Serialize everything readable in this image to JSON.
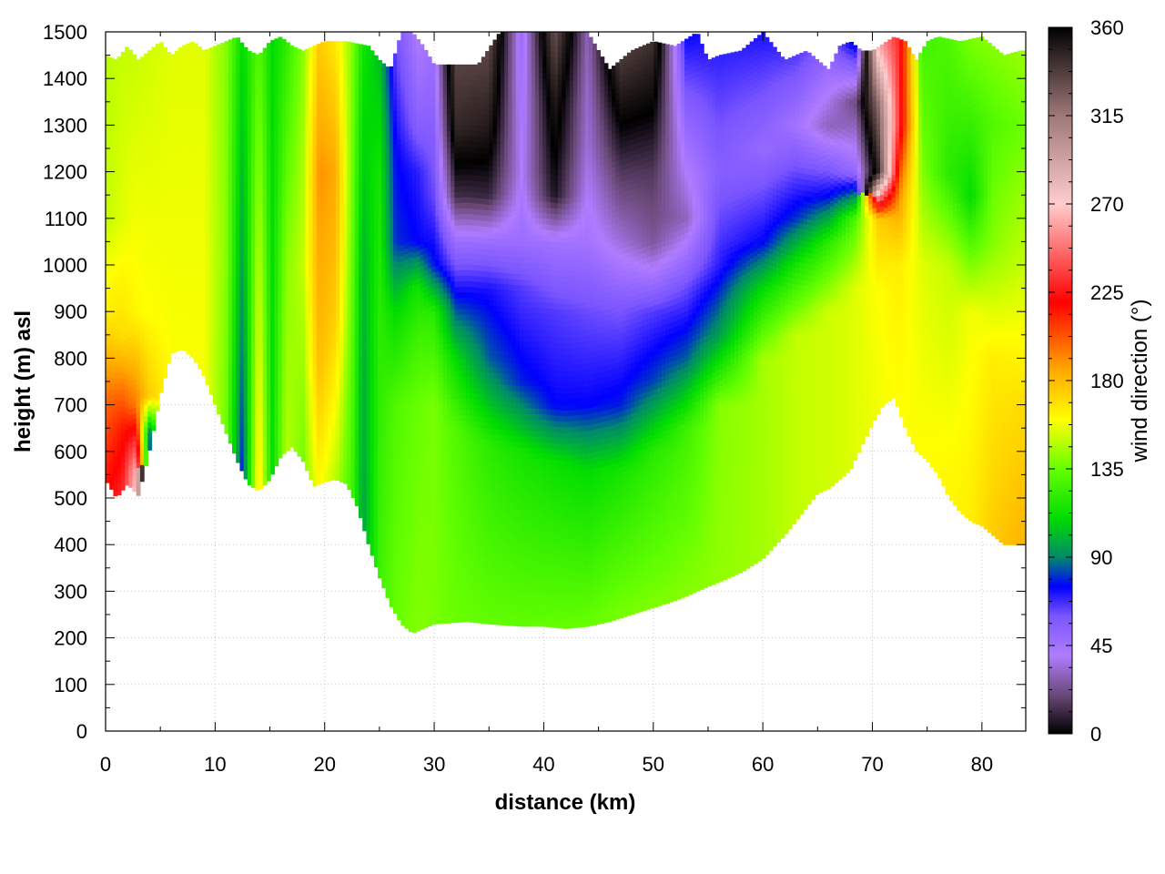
{
  "chart_data": {
    "type": "heatmap",
    "title": "",
    "xlabel": "distance (km)",
    "ylabel": "height (m) asl",
    "colorbar_label": "wind direction (°)",
    "xlim": [
      0,
      84
    ],
    "ylim": [
      0,
      1500
    ],
    "zlim": [
      0,
      360
    ],
    "x_ticks": [
      0,
      10,
      20,
      30,
      40,
      50,
      60,
      70,
      80
    ],
    "y_ticks": [
      0,
      100,
      200,
      300,
      400,
      500,
      600,
      700,
      800,
      900,
      1000,
      1100,
      1200,
      1300,
      1400,
      1500
    ],
    "colorbar_ticks": [
      0,
      45,
      90,
      135,
      180,
      225,
      270,
      315,
      360
    ],
    "grid": true,
    "colormap": [
      {
        "v": 0,
        "c": "#000000"
      },
      {
        "v": 20,
        "c": "#6b4a7a"
      },
      {
        "v": 40,
        "c": "#b07cff"
      },
      {
        "v": 60,
        "c": "#7a55ff"
      },
      {
        "v": 75,
        "c": "#0000ff"
      },
      {
        "v": 90,
        "c": "#008a6a"
      },
      {
        "v": 110,
        "c": "#00dd00"
      },
      {
        "v": 135,
        "c": "#66ff00"
      },
      {
        "v": 160,
        "c": "#ffff00"
      },
      {
        "v": 185,
        "c": "#ffaa00"
      },
      {
        "v": 220,
        "c": "#ff0000"
      },
      {
        "v": 270,
        "c": "#ffcccc"
      },
      {
        "v": 315,
        "c": "#a07878"
      },
      {
        "v": 360,
        "c": "#000000"
      }
    ],
    "terrain": {
      "x": [
        0,
        1,
        2,
        3,
        4,
        5,
        6,
        7,
        8,
        9,
        10,
        11,
        12,
        13,
        14,
        15,
        16,
        17,
        18,
        19,
        20,
        21,
        22,
        23,
        24,
        25,
        26,
        27,
        28,
        30,
        33,
        35,
        38,
        40,
        42,
        44,
        46,
        48,
        50,
        52,
        54,
        56,
        58,
        60,
        62,
        63,
        64,
        65,
        66,
        68,
        69,
        70,
        71,
        72,
        73,
        74,
        75,
        76,
        77,
        78,
        79,
        80,
        81,
        82,
        83.5
      ],
      "y": [
        540,
        500,
        530,
        505,
        600,
        720,
        810,
        820,
        800,
        760,
        700,
        640,
        580,
        530,
        515,
        540,
        590,
        610,
        580,
        525,
        535,
        540,
        530,
        480,
        400,
        330,
        270,
        230,
        210,
        230,
        235,
        230,
        225,
        225,
        220,
        225,
        235,
        250,
        265,
        280,
        300,
        320,
        340,
        370,
        420,
        450,
        480,
        510,
        520,
        560,
        610,
        660,
        700,
        715,
        650,
        600,
        580,
        550,
        500,
        470,
        450,
        440,
        420,
        400,
        400
      ]
    },
    "top": {
      "x": [
        0,
        1,
        2,
        3,
        4,
        5,
        6,
        7,
        8,
        9,
        10,
        11,
        12,
        13,
        14,
        15,
        16,
        17,
        18,
        20,
        22,
        24,
        25,
        26,
        27,
        28,
        29,
        30,
        32,
        34,
        36,
        38,
        40,
        42,
        44,
        46,
        48,
        50,
        52,
        54,
        55,
        56,
        58,
        60,
        62,
        64,
        66,
        67,
        68,
        69,
        70,
        72,
        73,
        74,
        75,
        76,
        78,
        80,
        82,
        83.5
      ],
      "y": [
        1450,
        1440,
        1470,
        1440,
        1460,
        1480,
        1450,
        1470,
        1480,
        1460,
        1470,
        1480,
        1490,
        1460,
        1450,
        1480,
        1490,
        1470,
        1460,
        1480,
        1480,
        1470,
        1440,
        1420,
        1500,
        1500,
        1470,
        1430,
        1430,
        1430,
        1500,
        1500,
        1500,
        1500,
        1500,
        1420,
        1460,
        1480,
        1470,
        1500,
        1440,
        1450,
        1460,
        1500,
        1440,
        1460,
        1420,
        1470,
        1480,
        1460,
        1460,
        1490,
        1480,
        1440,
        1480,
        1490,
        1480,
        1490,
        1450,
        1460
      ]
    },
    "profiles": [
      {
        "x": 0,
        "levels": [
          [
            400,
            230
          ],
          [
            700,
            200
          ],
          [
            900,
            165
          ],
          [
            1100,
            150
          ],
          [
            1500,
            148
          ]
        ]
      },
      {
        "x": 1.5,
        "levels": [
          [
            400,
            240
          ],
          [
            650,
            215
          ],
          [
            850,
            170
          ],
          [
            1100,
            155
          ],
          [
            1500,
            150
          ]
        ]
      },
      {
        "x": 2.8,
        "levels": [
          [
            400,
            290
          ],
          [
            560,
            265
          ],
          [
            700,
            195
          ],
          [
            900,
            162
          ],
          [
            1500,
            150
          ]
        ]
      },
      {
        "x": 4,
        "levels": [
          [
            400,
            60
          ],
          [
            640,
            90
          ],
          [
            720,
            175
          ],
          [
            900,
            160
          ],
          [
            1500,
            152
          ]
        ]
      },
      {
        "x": 6,
        "levels": [
          [
            700,
            160
          ],
          [
            1000,
            158
          ],
          [
            1500,
            155
          ]
        ]
      },
      {
        "x": 9,
        "levels": [
          [
            600,
            160
          ],
          [
            1000,
            158
          ],
          [
            1500,
            155
          ]
        ]
      },
      {
        "x": 11,
        "levels": [
          [
            500,
            135
          ],
          [
            1000,
            140
          ],
          [
            1500,
            140
          ]
        ]
      },
      {
        "x": 12.5,
        "levels": [
          [
            500,
            75
          ],
          [
            1000,
            95
          ],
          [
            1500,
            110
          ]
        ]
      },
      {
        "x": 14,
        "levels": [
          [
            500,
            170
          ],
          [
            1000,
            150
          ],
          [
            1500,
            130
          ]
        ]
      },
      {
        "x": 15.2,
        "levels": [
          [
            500,
            110
          ],
          [
            1000,
            110
          ],
          [
            1500,
            110
          ]
        ]
      },
      {
        "x": 16.5,
        "levels": [
          [
            500,
            150
          ],
          [
            1000,
            140
          ],
          [
            1500,
            120
          ]
        ]
      },
      {
        "x": 18,
        "levels": [
          [
            500,
            135
          ],
          [
            1000,
            150
          ],
          [
            1500,
            140
          ]
        ]
      },
      {
        "x": 19.5,
        "levels": [
          [
            500,
            160
          ],
          [
            800,
            180
          ],
          [
            1200,
            190
          ],
          [
            1500,
            175
          ]
        ]
      },
      {
        "x": 21,
        "levels": [
          [
            500,
            145
          ],
          [
            900,
            175
          ],
          [
            1200,
            185
          ],
          [
            1500,
            165
          ]
        ]
      },
      {
        "x": 22.5,
        "levels": [
          [
            400,
            125
          ],
          [
            1000,
            135
          ],
          [
            1500,
            140
          ]
        ]
      },
      {
        "x": 23.5,
        "levels": [
          [
            300,
            95
          ],
          [
            1000,
            100
          ],
          [
            1500,
            115
          ]
        ]
      },
      {
        "x": 25,
        "levels": [
          [
            300,
            125
          ],
          [
            900,
            120
          ],
          [
            1200,
            115
          ],
          [
            1500,
            100
          ]
        ]
      },
      {
        "x": 26.5,
        "levels": [
          [
            200,
            135
          ],
          [
            700,
            130
          ],
          [
            900,
            110
          ],
          [
            1050,
            80
          ],
          [
            1250,
            75
          ],
          [
            1500,
            60
          ]
        ]
      },
      {
        "x": 28.5,
        "levels": [
          [
            200,
            140
          ],
          [
            700,
            135
          ],
          [
            850,
            125
          ],
          [
            950,
            115
          ],
          [
            1050,
            75
          ],
          [
            1200,
            70
          ],
          [
            1300,
            55
          ],
          [
            1500,
            40
          ]
        ]
      },
      {
        "x": 30,
        "levels": [
          [
            200,
            138
          ],
          [
            700,
            138
          ],
          [
            900,
            120
          ],
          [
            1000,
            78
          ],
          [
            1150,
            62
          ],
          [
            1500,
            45
          ]
        ]
      },
      {
        "x": 32,
        "levels": [
          [
            200,
            136
          ],
          [
            650,
            130
          ],
          [
            800,
            110
          ],
          [
            950,
            72
          ],
          [
            1050,
            48
          ],
          [
            1150,
            12
          ],
          [
            1300,
            345
          ],
          [
            1500,
            330
          ]
        ]
      },
      {
        "x": 35,
        "levels": [
          [
            200,
            135
          ],
          [
            620,
            120
          ],
          [
            800,
            85
          ],
          [
            950,
            72
          ],
          [
            1050,
            48
          ],
          [
            1150,
            10
          ],
          [
            1300,
            350
          ],
          [
            1500,
            330
          ]
        ]
      },
      {
        "x": 38,
        "levels": [
          [
            200,
            135
          ],
          [
            600,
            115
          ],
          [
            750,
            78
          ],
          [
            950,
            65
          ],
          [
            1050,
            48
          ],
          [
            1200,
            40
          ],
          [
            1500,
            48
          ]
        ]
      },
      {
        "x": 41,
        "levels": [
          [
            200,
            136
          ],
          [
            580,
            112
          ],
          [
            700,
            75
          ],
          [
            900,
            65
          ],
          [
            1050,
            45
          ],
          [
            1150,
            5
          ],
          [
            1350,
            350
          ],
          [
            1500,
            330
          ]
        ]
      },
      {
        "x": 44,
        "levels": [
          [
            200,
            137
          ],
          [
            560,
            110
          ],
          [
            700,
            75
          ],
          [
            900,
            62
          ],
          [
            1050,
            45
          ],
          [
            1250,
            35
          ],
          [
            1500,
            30
          ]
        ]
      },
      {
        "x": 47,
        "levels": [
          [
            250,
            138
          ],
          [
            560,
            115
          ],
          [
            700,
            78
          ],
          [
            900,
            60
          ],
          [
            1050,
            35
          ],
          [
            1200,
            15
          ],
          [
            1500,
            330
          ]
        ]
      },
      {
        "x": 50,
        "levels": [
          [
            250,
            140
          ],
          [
            600,
            120
          ],
          [
            750,
            82
          ],
          [
            900,
            65
          ],
          [
            1050,
            25
          ],
          [
            1200,
            15
          ],
          [
            1500,
            340
          ]
        ]
      },
      {
        "x": 53,
        "levels": [
          [
            300,
            140
          ],
          [
            650,
            125
          ],
          [
            800,
            85
          ],
          [
            950,
            62
          ],
          [
            1100,
            30
          ],
          [
            1300,
            50
          ],
          [
            1500,
            75
          ]
        ]
      },
      {
        "x": 56,
        "levels": [
          [
            300,
            142
          ],
          [
            700,
            140
          ],
          [
            850,
            95
          ],
          [
            1000,
            70
          ],
          [
            1200,
            55
          ],
          [
            1500,
            72
          ]
        ]
      },
      {
        "x": 60,
        "levels": [
          [
            350,
            145
          ],
          [
            800,
            145
          ],
          [
            950,
            110
          ],
          [
            1050,
            75
          ],
          [
            1250,
            50
          ],
          [
            1500,
            72
          ]
        ]
      },
      {
        "x": 63,
        "levels": [
          [
            450,
            150
          ],
          [
            850,
            150
          ],
          [
            1000,
            115
          ],
          [
            1100,
            80
          ],
          [
            1300,
            45
          ],
          [
            1500,
            72
          ]
        ]
      },
      {
        "x": 66,
        "levels": [
          [
            500,
            152
          ],
          [
            900,
            152
          ],
          [
            1050,
            120
          ],
          [
            1150,
            75
          ],
          [
            1300,
            30
          ],
          [
            1500,
            60
          ]
        ]
      },
      {
        "x": 68.5,
        "levels": [
          [
            550,
            155
          ],
          [
            950,
            155
          ],
          [
            1100,
            130
          ],
          [
            1200,
            50
          ],
          [
            1350,
            20
          ],
          [
            1500,
            90
          ]
        ]
      },
      {
        "x": 70.5,
        "levels": [
          [
            700,
            158
          ],
          [
            950,
            160
          ],
          [
            1100,
            175
          ],
          [
            1200,
            350
          ],
          [
            1350,
            320
          ],
          [
            1500,
            250
          ]
        ]
      },
      {
        "x": 72.5,
        "levels": [
          [
            700,
            160
          ],
          [
            1000,
            165
          ],
          [
            1150,
            190
          ],
          [
            1300,
            230
          ],
          [
            1450,
            230
          ]
        ]
      },
      {
        "x": 74.5,
        "levels": [
          [
            600,
            160
          ],
          [
            1000,
            155
          ],
          [
            1200,
            140
          ],
          [
            1500,
            125
          ]
        ]
      },
      {
        "x": 77,
        "levels": [
          [
            550,
            162
          ],
          [
            1000,
            150
          ],
          [
            1200,
            120
          ],
          [
            1500,
            130
          ]
        ]
      },
      {
        "x": 79,
        "levels": [
          [
            450,
            165
          ],
          [
            900,
            158
          ],
          [
            1150,
            110
          ],
          [
            1500,
            140
          ]
        ]
      },
      {
        "x": 81,
        "levels": [
          [
            420,
            175
          ],
          [
            800,
            165
          ],
          [
            1050,
            140
          ],
          [
            1300,
            130
          ],
          [
            1500,
            142
          ]
        ]
      },
      {
        "x": 83.5,
        "levels": [
          [
            400,
            182
          ],
          [
            700,
            170
          ],
          [
            1000,
            150
          ],
          [
            1300,
            135
          ],
          [
            1500,
            145
          ]
        ]
      }
    ]
  }
}
